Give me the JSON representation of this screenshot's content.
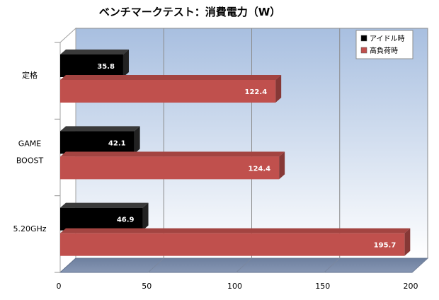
{
  "chart_data": {
    "type": "bar",
    "orientation": "horizontal",
    "style": "3d",
    "title": "ベンチマークテスト：消費電力（W）",
    "xlabel": "",
    "ylabel": "",
    "categories": [
      [
        "定格"
      ],
      [
        "GAME",
        "BOOST"
      ],
      [
        "5.20GHz"
      ]
    ],
    "series": [
      {
        "name": "アイドル時",
        "values": [
          35.8,
          42.1,
          46.9
        ],
        "color": "#000000"
      },
      {
        "name": "高負荷時",
        "values": [
          122.4,
          124.4,
          195.7
        ],
        "color": "#c0504d"
      }
    ],
    "xlim": [
      0,
      200
    ],
    "ticks": [
      0,
      50,
      100,
      150,
      200
    ],
    "grid": true,
    "legend_position": "top-right",
    "data_labels": true
  }
}
